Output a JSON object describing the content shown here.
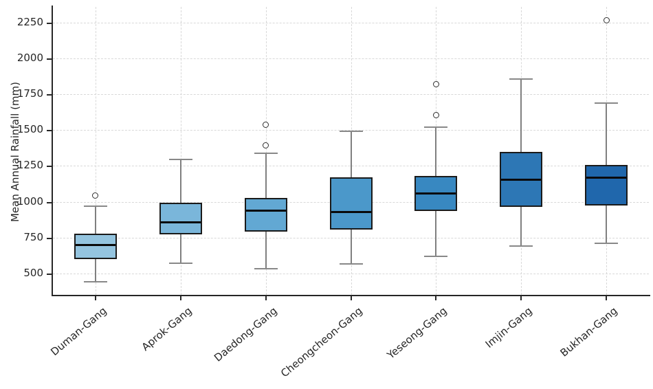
{
  "figure": {
    "background": "#ffffff",
    "axis_color": "#262626",
    "grid_color": "#d8d8d8",
    "box_edge_color": "#1a1a1a",
    "median_color": "#0a0a0a",
    "whisker_color": "#7f7f7f"
  },
  "chart_data": {
    "type": "boxplot",
    "title": "",
    "xlabel": "",
    "ylabel": "Mean Annual Rainfall (mm)",
    "ylim": [
      350,
      2360
    ],
    "yticks": [
      500,
      750,
      1000,
      1250,
      1500,
      1750,
      2000,
      2250
    ],
    "grid": "dashed horizontal gridlines at yticks and dashed vertical gridlines at each category",
    "legend": "none",
    "categories": [
      "Duman-Gang",
      "Aprok-Gang",
      "Daedong-Gang",
      "Cheongcheon-Gang",
      "Yeseong-Gang",
      "Imjin-Gang",
      "Bukhan-Gang"
    ],
    "series": [
      {
        "name": "Duman-Gang",
        "whisker_low": 440,
        "q1": 600,
        "median": 700,
        "q3": 775,
        "whisker_high": 970,
        "outliers": [
          1045
        ],
        "fill_color": "#94c4df"
      },
      {
        "name": "Aprok-Gang",
        "whisker_low": 570,
        "q1": 770,
        "median": 858,
        "q3": 995,
        "whisker_high": 1293,
        "outliers": [],
        "fill_color": "#7ab6da"
      },
      {
        "name": "Daedong-Gang",
        "whisker_low": 532,
        "q1": 790,
        "median": 938,
        "q3": 1025,
        "whisker_high": 1340,
        "outliers": [
          1395,
          1538
        ],
        "fill_color": "#62a8d3"
      },
      {
        "name": "Cheongcheon-Gang",
        "whisker_low": 568,
        "q1": 808,
        "median": 927,
        "q3": 1172,
        "whisker_high": 1490,
        "outliers": [],
        "fill_color": "#4b98ca"
      },
      {
        "name": "Yeseong-Gang",
        "whisker_low": 620,
        "q1": 935,
        "median": 1056,
        "q3": 1180,
        "whisker_high": 1522,
        "outliers": [
          1605,
          1822
        ],
        "fill_color": "#3888c1"
      },
      {
        "name": "Imjin-Gang",
        "whisker_low": 690,
        "q1": 965,
        "median": 1153,
        "q3": 1350,
        "whisker_high": 1855,
        "outliers": [],
        "fill_color": "#2d77b5"
      },
      {
        "name": "Bukhan-Gang",
        "whisker_low": 710,
        "q1": 975,
        "median": 1168,
        "q3": 1257,
        "whisker_high": 1690,
        "outliers": [
          2268
        ],
        "fill_color": "#2067ac"
      }
    ]
  }
}
